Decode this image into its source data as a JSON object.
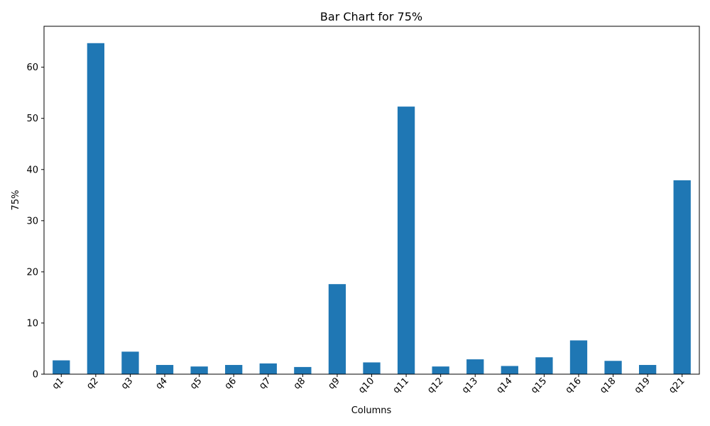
{
  "chart_data": {
    "type": "bar",
    "title": "Bar Chart for 75%",
    "xlabel": "Columns",
    "ylabel": "75%",
    "categories": [
      "q1",
      "q2",
      "q3",
      "q4",
      "q5",
      "q6",
      "q7",
      "q8",
      "q9",
      "q10",
      "q11",
      "q12",
      "q13",
      "q14",
      "q15",
      "q16",
      "q18",
      "q19",
      "q21"
    ],
    "values": [
      2.7,
      64.7,
      4.4,
      1.8,
      1.5,
      1.8,
      2.1,
      1.4,
      17.6,
      2.3,
      52.3,
      1.5,
      2.9,
      1.6,
      3.3,
      6.6,
      2.6,
      1.8,
      37.9
    ],
    "ylim": [
      0,
      68
    ],
    "yticks": [
      0,
      10,
      20,
      30,
      40,
      50,
      60
    ],
    "grid": false,
    "bar_color": "#1f77b4"
  }
}
